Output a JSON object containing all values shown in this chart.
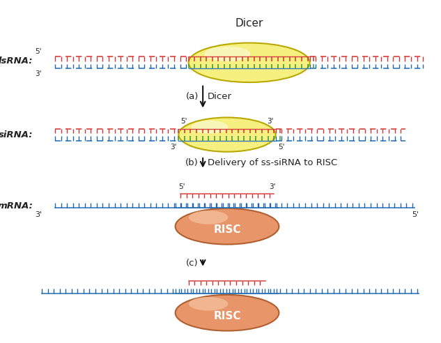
{
  "bg_color": "#ffffff",
  "dsRNA_label": "dsRNA:",
  "siRNA_label": "siRNA:",
  "mRNA_label": "mRNA:",
  "dicer_label": "Dicer",
  "RISC_label": "RISC",
  "step_a_label": "(a)",
  "step_a_suffix": "Dicer",
  "step_b_label": "(b)",
  "step_b_suffix": "Delivery of ss-siRNA to RISC",
  "step_c_label": "(c)",
  "strand_red": "#d94040",
  "strand_blue": "#3377bb",
  "tick_red": "#cc3333",
  "tick_blue": "#2266aa",
  "tick_green": "#339933",
  "dicer_fill_outer": "#e8d820",
  "dicer_fill_inner": "#f5f080",
  "dicer_edge": "#b8a800",
  "risc_fill": "#e8956a",
  "risc_fill_light": "#f5c5a0",
  "risc_edge": "#b06030",
  "arrow_color": "#111111",
  "text_color": "#222222",
  "label_color": "#555555"
}
